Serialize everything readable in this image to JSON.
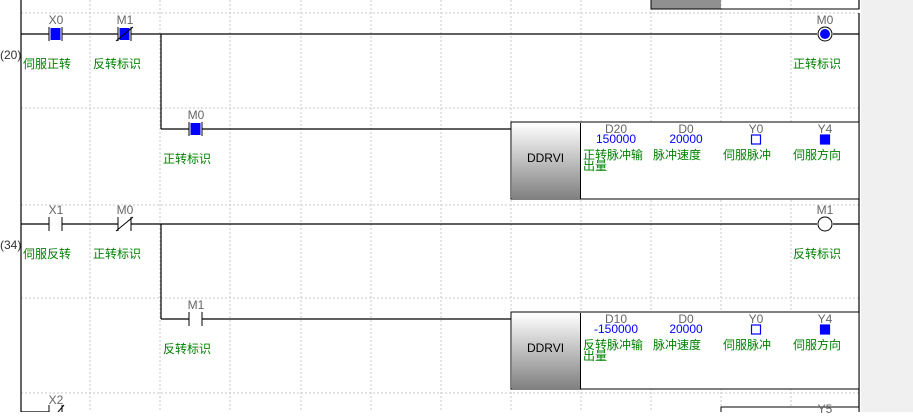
{
  "rungs": [
    {
      "step": "(20)",
      "contacts": [
        {
          "device": "X0",
          "comment": "伺服正转",
          "type": "NO",
          "on": true
        },
        {
          "device": "M1",
          "comment": "反转标识",
          "type": "NC",
          "on": true
        }
      ],
      "coil": {
        "device": "M0",
        "comment": "正转标识",
        "on": true
      },
      "branch_contact": {
        "device": "M0",
        "comment": "正转标识",
        "type": "NO",
        "on": true
      },
      "instruction": {
        "name": "DDRVI",
        "operands": [
          {
            "device": "D20",
            "value": "150000",
            "comment": "正转脉冲输出量"
          },
          {
            "device": "D0",
            "value": "20000",
            "comment": "脉冲速度"
          },
          {
            "device": "Y0",
            "state": "off",
            "comment": "伺服脉冲"
          },
          {
            "device": "Y4",
            "state": "on",
            "comment": "伺服方向"
          }
        ]
      }
    },
    {
      "step": "(34)",
      "contacts": [
        {
          "device": "X1",
          "comment": "伺服反转",
          "type": "NO",
          "on": false
        },
        {
          "device": "M0",
          "comment": "正转标识",
          "type": "NC",
          "on": false
        }
      ],
      "coil": {
        "device": "M1",
        "comment": "反转标识",
        "on": false
      },
      "branch_contact": {
        "device": "M1",
        "comment": "反转标识",
        "type": "NO",
        "on": false
      },
      "instruction": {
        "name": "DDRVI",
        "operands": [
          {
            "device": "D10",
            "value": "-150000",
            "comment": "反转脉冲输出量"
          },
          {
            "device": "D0",
            "value": "20000",
            "comment": "脉冲速度"
          },
          {
            "device": "Y0",
            "state": "off",
            "comment": "伺服脉冲"
          },
          {
            "device": "Y4",
            "state": "on",
            "comment": "伺服方向"
          }
        ]
      }
    }
  ],
  "partial_bottom": {
    "contact": "X2",
    "block_device": "Y5"
  },
  "colors": {
    "active": "#0000ff",
    "comment": "#008000",
    "device": "#666666"
  }
}
